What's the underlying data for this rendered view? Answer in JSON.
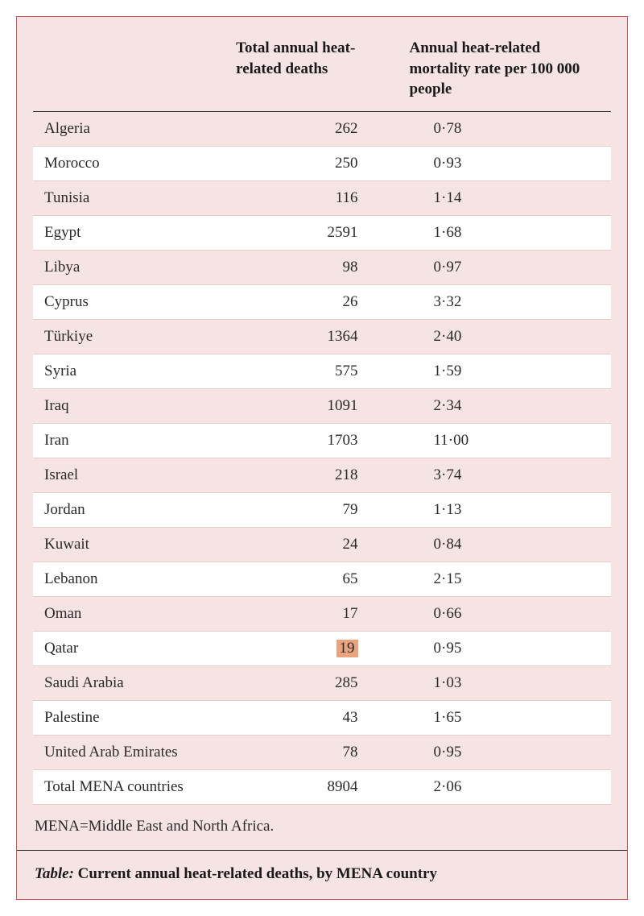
{
  "table": {
    "type": "table",
    "colors": {
      "border": "#d15656",
      "pink_bg": "#f6e3e3",
      "white_bg": "#ffffff",
      "row_divider": "#e7cccc",
      "rule": "#2a2a2a",
      "text": "#2a2a2a",
      "highlight_bg": "#eaa37f"
    },
    "typography": {
      "font_family": "Georgia, Times New Roman, serif",
      "font_size_pt": 14,
      "header_weight": "bold"
    },
    "columns": [
      {
        "key": "country",
        "label": "",
        "width_pct": 34,
        "align": "left"
      },
      {
        "key": "deaths",
        "label": "Total annual heat-related deaths",
        "width_pct": 30,
        "align": "right"
      },
      {
        "key": "rate",
        "label": "Annual heat-related mortality rate per 100 000 people",
        "width_pct": 36,
        "align": "left"
      }
    ],
    "rows": [
      {
        "country": "Algeria",
        "deaths": "262",
        "rate": "0·78"
      },
      {
        "country": "Morocco",
        "deaths": "250",
        "rate": "0·93"
      },
      {
        "country": "Tunisia",
        "deaths": "116",
        "rate": "1·14"
      },
      {
        "country": "Egypt",
        "deaths": "2591",
        "rate": "1·68"
      },
      {
        "country": "Libya",
        "deaths": "98",
        "rate": "0·97"
      },
      {
        "country": "Cyprus",
        "deaths": "26",
        "rate": "3·32"
      },
      {
        "country": "Türkiye",
        "deaths": "1364",
        "rate": "2·40"
      },
      {
        "country": "Syria",
        "deaths": "575",
        "rate": "1·59"
      },
      {
        "country": "Iraq",
        "deaths": "1091",
        "rate": "2·34"
      },
      {
        "country": "Iran",
        "deaths": "1703",
        "rate": "11·00"
      },
      {
        "country": "Israel",
        "deaths": "218",
        "rate": "3·74"
      },
      {
        "country": "Jordan",
        "deaths": "79",
        "rate": "1·13"
      },
      {
        "country": "Kuwait",
        "deaths": "24",
        "rate": "0·84"
      },
      {
        "country": "Lebanon",
        "deaths": "65",
        "rate": "2·15"
      },
      {
        "country": "Oman",
        "deaths": "17",
        "rate": "0·66"
      },
      {
        "country": "Qatar",
        "deaths": "19",
        "rate": "0·95",
        "highlight_deaths": true
      },
      {
        "country": "Saudi Arabia",
        "deaths": "285",
        "rate": "1·03"
      },
      {
        "country": "Palestine",
        "deaths": "43",
        "rate": "1·65"
      },
      {
        "country": "United Arab Emirates",
        "deaths": "78",
        "rate": "0·95"
      },
      {
        "country": "Total MENA countries",
        "deaths": "8904",
        "rate": "2·06"
      }
    ],
    "footnote": "MENA=Middle East and North Africa.",
    "caption_lead": "Table:",
    "caption_rest": " Current annual heat-related deaths, by MENA country"
  }
}
